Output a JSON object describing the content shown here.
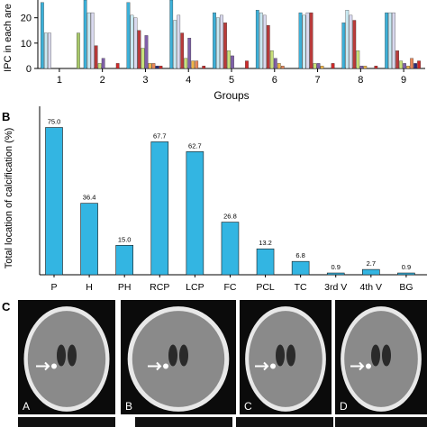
{
  "panels": {
    "b_letter": "B",
    "c_letter": "C"
  },
  "chart_data": [
    {
      "type": "bar",
      "title": "",
      "xlabel": "Groups",
      "ylabel": "IPC in each are",
      "categories": [
        "1",
        "2",
        "3",
        "4",
        "5",
        "6",
        "7",
        "8",
        "9"
      ],
      "ylim": [
        0,
        27
      ],
      "yticks": [
        0,
        10,
        20
      ],
      "grid": false,
      "colors": [
        "#3cb0d8",
        "#c9e9f2",
        "#d9d9ef",
        "#b93a3a",
        "#c8e07a",
        "#7f5fa8",
        "#f0b64a",
        "#e8875a",
        "#2a2a7a",
        "#cc2b2b",
        "#a8c86a"
      ],
      "series_values": [
        [
          26,
          14,
          14,
          0,
          0,
          0,
          0,
          0,
          0,
          0,
          14
        ],
        [
          27,
          22,
          22,
          9,
          2,
          4,
          0,
          0,
          0,
          2,
          0
        ],
        [
          26,
          21,
          20,
          15,
          8,
          13,
          2,
          2,
          1,
          1,
          0
        ],
        [
          27,
          19,
          21,
          14,
          4,
          12,
          3,
          3,
          0,
          1,
          0
        ],
        [
          22,
          20,
          21,
          18,
          7,
          5,
          0,
          0,
          0,
          3,
          0
        ],
        [
          23,
          22,
          21,
          17,
          7,
          4,
          2,
          1,
          0,
          0,
          0
        ],
        [
          22,
          21,
          22,
          22,
          2,
          2,
          1,
          0,
          0,
          2,
          0
        ],
        [
          18,
          23,
          21,
          19,
          7,
          1,
          1,
          0,
          0,
          1,
          0
        ],
        [
          22,
          22,
          22,
          7,
          3,
          2,
          1,
          4,
          2,
          3,
          0
        ]
      ]
    },
    {
      "type": "bar",
      "title": "",
      "xlabel": "",
      "ylabel": "Total location of calcification (%)",
      "categories": [
        "P",
        "H",
        "PH",
        "RCP",
        "LCP",
        "FC",
        "PCL",
        "TC",
        "3rd V",
        "4th V",
        "BG"
      ],
      "values": [
        75.0,
        36.4,
        15.0,
        67.7,
        62.7,
        26.8,
        13.2,
        6.8,
        0.9,
        2.7,
        0.9
      ],
      "data_labels": [
        "75.0",
        "36.4",
        "15.0",
        "67.7",
        "62.7",
        "26.8",
        "13.2",
        "6.8",
        "0.9",
        "2.7",
        "0.9"
      ],
      "ylim": [
        0,
        80
      ],
      "color": "#33b5e2",
      "grid": false,
      "legend": "none"
    }
  ],
  "ct_images": [
    {
      "letter": "A"
    },
    {
      "letter": "B"
    },
    {
      "letter": "C"
    },
    {
      "letter": "D"
    }
  ]
}
